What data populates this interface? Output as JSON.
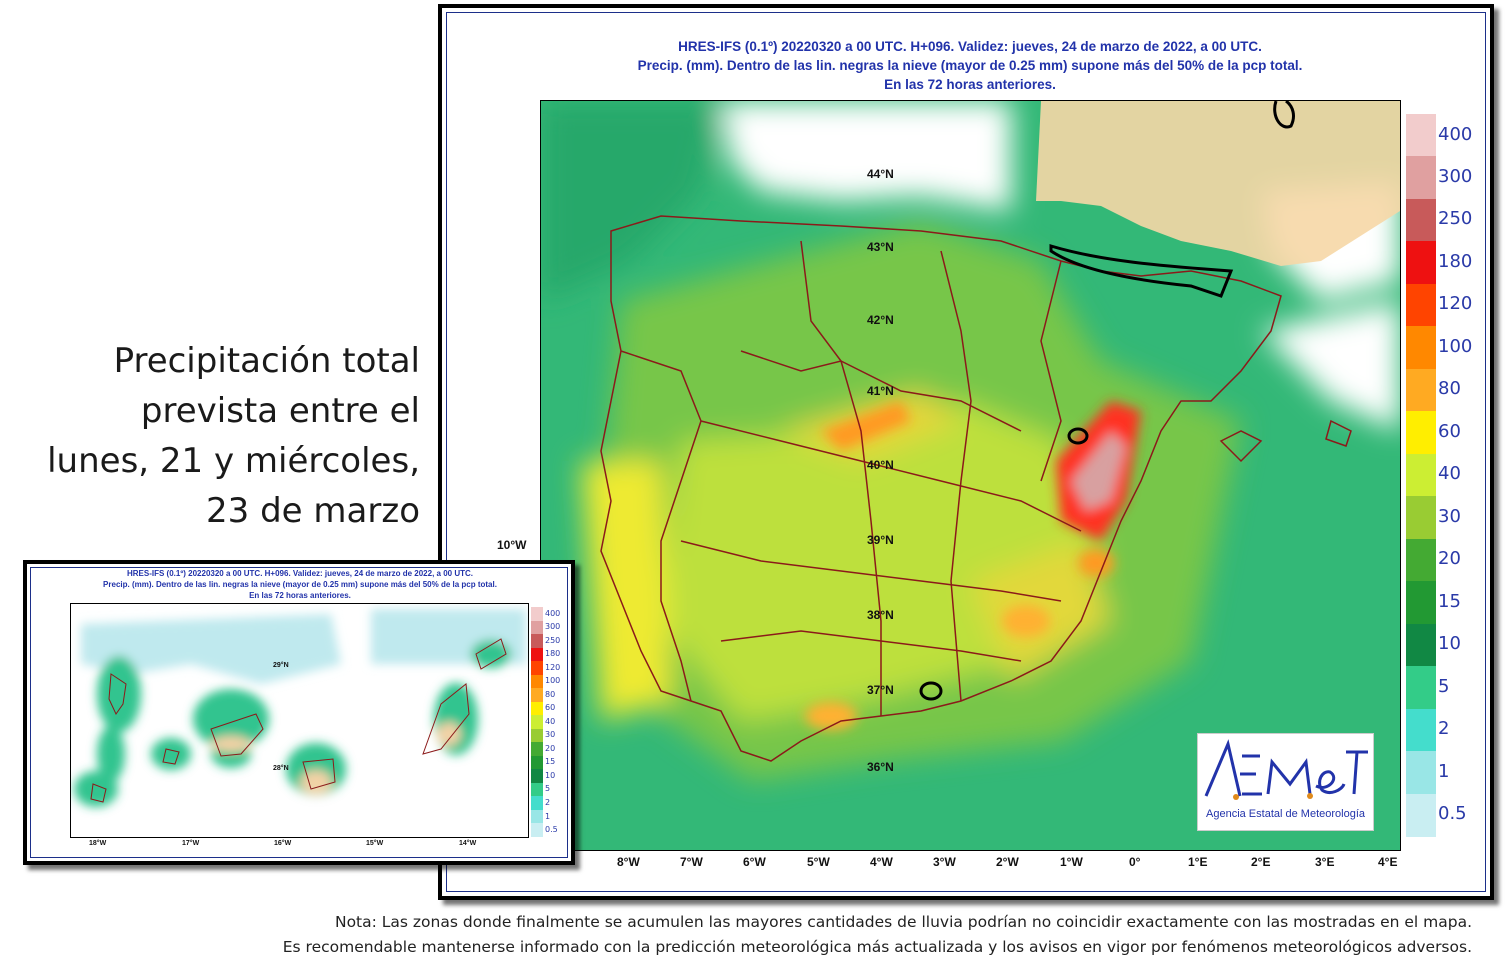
{
  "headline": [
    "Precipitación total",
    "prevista entre el",
    "lunes, 21 y miércoles,",
    "23 de marzo"
  ],
  "main_map": {
    "title": [
      "HRES-IFS (0.1º) 20220320 a 00 UTC.  H+096. Validez: jueves, 24 de marzo de 2022,  a  00 UTC.",
      "Precip. (mm). Dentro de las lin. negras la nieve (mayor de 0.25 mm) supone más del 50% de la pcp total.",
      "En las 72 horas anteriores."
    ],
    "lat_labels": [
      "44°N",
      "43°N",
      "42°N",
      "41°N",
      "40°N",
      "39°N",
      "38°N",
      "37°N",
      "36°N"
    ],
    "lon_labels": [
      "10°W",
      "8°W",
      "7°W",
      "6°W",
      "5°W",
      "4°W",
      "3°W",
      "2°W",
      "1°W",
      "0°",
      "1°E",
      "2°E",
      "3°E",
      "4°E"
    ]
  },
  "inset_map": {
    "title": [
      "HRES-IFS (0.1º) 20220320 a 00 UTC.  H+096. Validez: jueves, 24 de marzo de 2022,  a  00 UTC.",
      "Precip. (mm). Dentro de las lin. negras la nieve (mayor de 0.25 mm) supone más del 50% de la pcp total.",
      "En las 72 horas anteriores."
    ],
    "lat_labels": [
      "29°N",
      "28°N"
    ],
    "lon_labels": [
      "18°W",
      "17°W",
      "16°W",
      "15°W",
      "14°W"
    ]
  },
  "legend": {
    "unit": "mm",
    "levels": [
      "400",
      "300",
      "250",
      "180",
      "120",
      "100",
      "80",
      "60",
      "40",
      "30",
      "20",
      "15",
      "10",
      "5",
      "2",
      "1",
      "0.5"
    ],
    "colors": [
      "#f2cccc",
      "#e0a0a0",
      "#c85a5a",
      "#ee1111",
      "#ff4400",
      "#ff8800",
      "#ffaa22",
      "#ffee00",
      "#ccee33",
      "#99cc33",
      "#44aa33",
      "#229933",
      "#118844",
      "#33cc88",
      "#44ddcc",
      "#99e6e6",
      "#c9eef2"
    ]
  },
  "logo": {
    "name": "AEmet",
    "caption": "Agencia Estatal de Meteorología"
  },
  "note": [
    "Nota: Las zonas donde finalmente se acumulen las mayores cantidades de lluvia podrían no coincidir exactamente con las mostradas en el mapa.",
    "Es recomendable mantenerse informado con la predicción meteorológica más actualizada y los avisos en vigor por fenómenos meteorológicos adversos."
  ]
}
